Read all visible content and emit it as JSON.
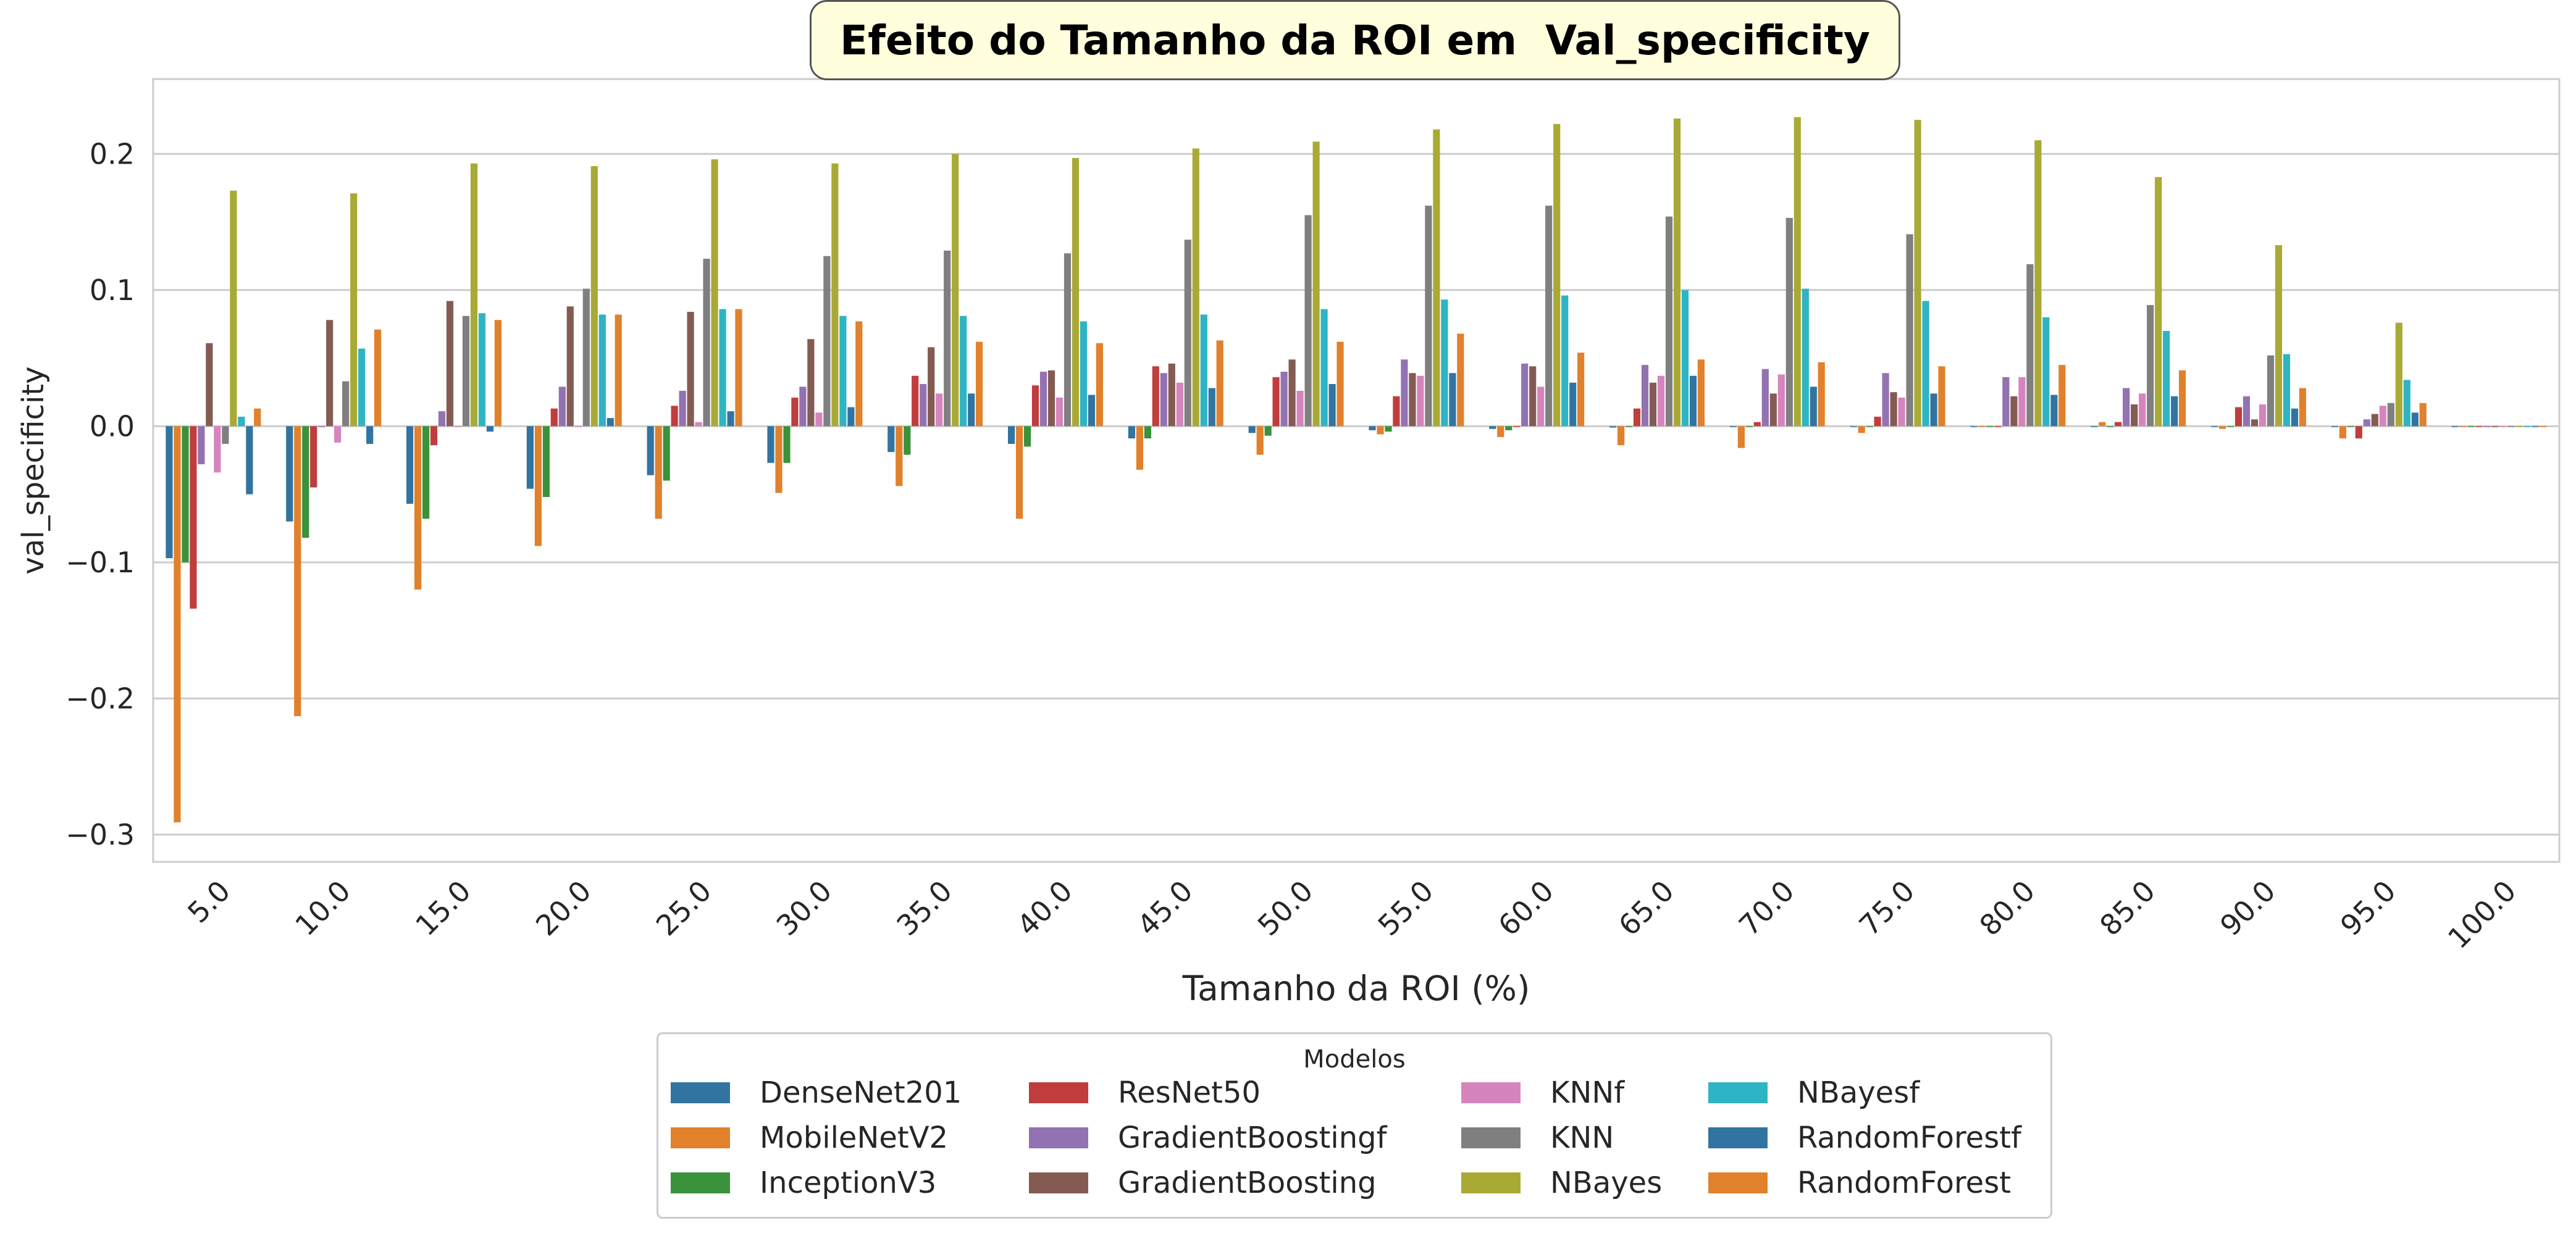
{
  "chart_data": {
    "type": "bar",
    "title": "Efeito do Tamanho da ROI em  Val_specificity",
    "xlabel": "Tamanho da ROI (%)",
    "ylabel": "val_specificity",
    "ylim": [
      -0.32,
      0.255
    ],
    "yticks": [
      0.2,
      0.1,
      0.0,
      -0.1,
      -0.2,
      -0.3
    ],
    "ytick_labels": [
      "0.2",
      "0.1",
      "0.0",
      "−0.1",
      "−0.2",
      "−0.3"
    ],
    "grid": true,
    "legend_title": "Modelos",
    "legend_position": "bottom-center",
    "categories": [
      "5.0",
      "10.0",
      "15.0",
      "20.0",
      "25.0",
      "30.0",
      "35.0",
      "40.0",
      "45.0",
      "50.0",
      "55.0",
      "60.0",
      "65.0",
      "70.0",
      "75.0",
      "80.0",
      "85.0",
      "90.0",
      "95.0",
      "100.0"
    ],
    "series": [
      {
        "name": "DenseNet201",
        "color": "#3274a1",
        "values": [
          -0.097,
          -0.07,
          -0.057,
          -0.046,
          -0.036,
          -0.027,
          -0.019,
          -0.013,
          -0.009,
          -0.005,
          -0.003,
          -0.002,
          -0.001,
          0.0,
          0.0,
          0.0,
          0.0,
          0.0,
          0.0,
          0.0
        ]
      },
      {
        "name": "MobileNetV2",
        "color": "#e1812c",
        "values": [
          -0.291,
          -0.213,
          -0.12,
          -0.088,
          -0.068,
          -0.049,
          -0.044,
          -0.068,
          -0.032,
          -0.021,
          -0.006,
          -0.008,
          -0.014,
          -0.016,
          -0.005,
          0.0,
          0.003,
          -0.002,
          -0.009,
          0.0
        ]
      },
      {
        "name": "InceptionV3",
        "color": "#3a923a",
        "values": [
          -0.1,
          -0.082,
          -0.068,
          -0.052,
          -0.04,
          -0.027,
          -0.021,
          -0.015,
          -0.009,
          -0.007,
          -0.004,
          -0.003,
          0.0,
          0.0,
          0.0,
          0.0,
          0.0,
          0.0,
          0.0,
          0.0
        ]
      },
      {
        "name": "ResNet50",
        "color": "#c03d3e",
        "values": [
          -0.134,
          -0.045,
          -0.014,
          0.013,
          0.015,
          0.021,
          0.037,
          0.03,
          0.044,
          0.036,
          0.022,
          0.0,
          0.013,
          0.003,
          0.007,
          0.0,
          0.003,
          0.014,
          -0.009,
          0.0
        ]
      },
      {
        "name": "GradientBoostingf",
        "color": "#9372b2",
        "values": [
          -0.028,
          0.0,
          0.011,
          0.029,
          0.026,
          0.029,
          0.031,
          0.04,
          0.039,
          0.04,
          0.049,
          0.046,
          0.045,
          0.042,
          0.039,
          0.036,
          0.028,
          0.022,
          0.005,
          0.0
        ]
      },
      {
        "name": "GradientBoosting",
        "color": "#845b53",
        "values": [
          0.061,
          0.078,
          0.092,
          0.088,
          0.084,
          0.064,
          0.058,
          0.041,
          0.046,
          0.049,
          0.039,
          0.044,
          0.032,
          0.024,
          0.025,
          0.022,
          0.016,
          0.005,
          0.009,
          0.0
        ]
      },
      {
        "name": "KNNf",
        "color": "#d684bd",
        "values": [
          -0.034,
          -0.012,
          0.0,
          0.0,
          0.003,
          0.01,
          0.024,
          0.021,
          0.032,
          0.026,
          0.037,
          0.029,
          0.037,
          0.038,
          0.021,
          0.036,
          0.024,
          0.016,
          0.015,
          0.0
        ]
      },
      {
        "name": "KNN",
        "color": "#7f7f7f",
        "values": [
          -0.013,
          0.033,
          0.081,
          0.101,
          0.123,
          0.125,
          0.129,
          0.127,
          0.137,
          0.155,
          0.162,
          0.162,
          0.154,
          0.153,
          0.141,
          0.119,
          0.089,
          0.052,
          0.017,
          0.0
        ]
      },
      {
        "name": "NBayes",
        "color": "#a9aa35",
        "values": [
          0.173,
          0.171,
          0.193,
          0.191,
          0.196,
          0.193,
          0.2,
          0.197,
          0.204,
          0.209,
          0.218,
          0.222,
          0.226,
          0.227,
          0.225,
          0.21,
          0.183,
          0.133,
          0.076,
          0.0
        ]
      },
      {
        "name": "NBayesf",
        "color": "#2eb4c4",
        "values": [
          0.007,
          0.057,
          0.083,
          0.082,
          0.086,
          0.081,
          0.081,
          0.077,
          0.082,
          0.086,
          0.093,
          0.096,
          0.1,
          0.101,
          0.092,
          0.08,
          0.07,
          0.053,
          0.034,
          0.0
        ]
      },
      {
        "name": "RandomForestf",
        "color": "#3274a1",
        "values": [
          -0.05,
          -0.013,
          -0.004,
          0.006,
          0.011,
          0.014,
          0.024,
          0.023,
          0.028,
          0.031,
          0.039,
          0.032,
          0.037,
          0.029,
          0.024,
          0.023,
          0.022,
          0.013,
          0.01,
          0.0
        ]
      },
      {
        "name": "RandomForest",
        "color": "#e1812c",
        "values": [
          0.013,
          0.071,
          0.078,
          0.082,
          0.086,
          0.077,
          0.062,
          0.061,
          0.063,
          0.062,
          0.068,
          0.054,
          0.049,
          0.047,
          0.044,
          0.045,
          0.041,
          0.028,
          0.017,
          0.0
        ]
      }
    ]
  }
}
